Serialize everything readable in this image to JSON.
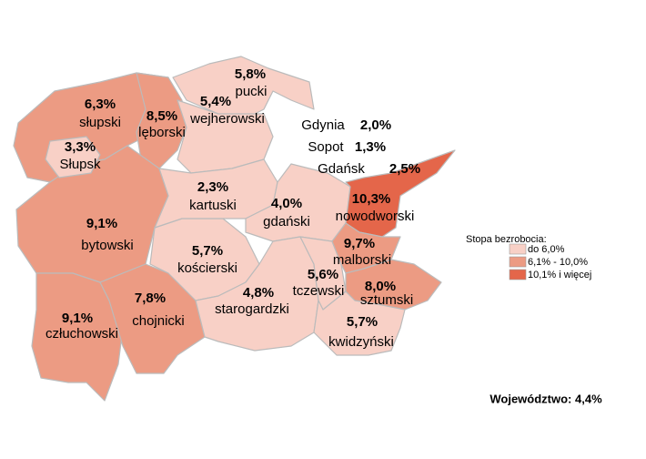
{
  "regions": [
    {
      "name": "słupski",
      "rate": "6,3%",
      "class": 1
    },
    {
      "name": "lęborski",
      "rate": "8,5%",
      "class": 1
    },
    {
      "name": "pucki",
      "rate": "5,8%",
      "class": 0
    },
    {
      "name": "wejherowski",
      "rate": "5,4%",
      "class": 0
    },
    {
      "name": "bytowski",
      "rate": "9,1%",
      "class": 1
    },
    {
      "name": "człuchowski",
      "rate": "9,1%",
      "class": 1
    },
    {
      "name": "chojnicki",
      "rate": "7,8%",
      "class": 1
    },
    {
      "name": "kościerski",
      "rate": "5,7%",
      "class": 0
    },
    {
      "name": "kartuski",
      "rate": "2,3%",
      "class": 0
    },
    {
      "name": "gdański",
      "rate": "4,0%",
      "class": 0
    },
    {
      "name": "starogardzki",
      "rate": "4,8%",
      "class": 0
    },
    {
      "name": "tczewski",
      "rate": "5,6%",
      "class": 0
    },
    {
      "name": "nowodworski",
      "rate": "10,3%",
      "class": 2
    },
    {
      "name": "malborski",
      "rate": "9,7%",
      "class": 1
    },
    {
      "name": "sztumski",
      "rate": "8,0%",
      "class": 1
    },
    {
      "name": "kwidzyński",
      "rate": "5,7%",
      "class": 0
    },
    {
      "name": "Słupsk",
      "rate": "3,3%",
      "class": 0
    }
  ],
  "cities": [
    {
      "name": "Gdynia",
      "rate": "2,0%"
    },
    {
      "name": "Sopot",
      "rate": "1,3%"
    },
    {
      "name": "Gdańsk",
      "rate": "2,5%"
    }
  ],
  "legend": {
    "title": "Stopa bezrobocia:",
    "items": [
      {
        "label": "do 6,0%",
        "color": "#f8d0c6"
      },
      {
        "label": "6,1% - 10,0%",
        "color": "#ec9b83"
      },
      {
        "label": "10,1% i więcej",
        "color": "#e4664a"
      }
    ]
  },
  "footer": "Województwo: 4,4%"
}
